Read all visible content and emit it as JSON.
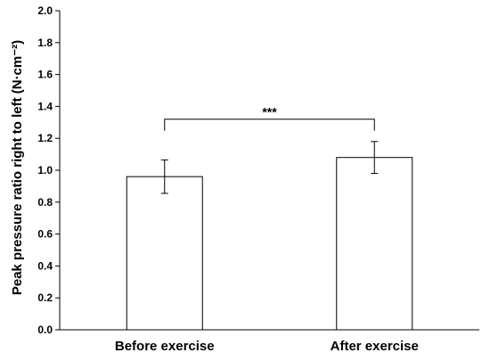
{
  "chart_data": {
    "type": "bar",
    "categories": [
      "Before exercise",
      "After exercise"
    ],
    "values": [
      0.96,
      1.08
    ],
    "errors": [
      0.105,
      0.1
    ],
    "ylabel": "Peak pressure ratio right to left (N·cm⁻²)",
    "ylim": [
      0,
      2.0
    ],
    "yticks": [
      "0.0",
      "0.2",
      "0.4",
      "0.6",
      "0.8",
      "1.0",
      "1.2",
      "1.4",
      "1.6",
      "1.8",
      "2.0"
    ],
    "ytick_values": [
      0,
      0.2,
      0.4,
      0.6,
      0.8,
      1.0,
      1.2,
      1.4,
      1.6,
      1.8,
      2.0
    ],
    "significance": {
      "from": 0,
      "to": 1,
      "label": "***",
      "y": 1.32
    },
    "grid": false,
    "legend": "none",
    "bar_fill": "#ffffff",
    "bar_stroke": "#000000"
  }
}
